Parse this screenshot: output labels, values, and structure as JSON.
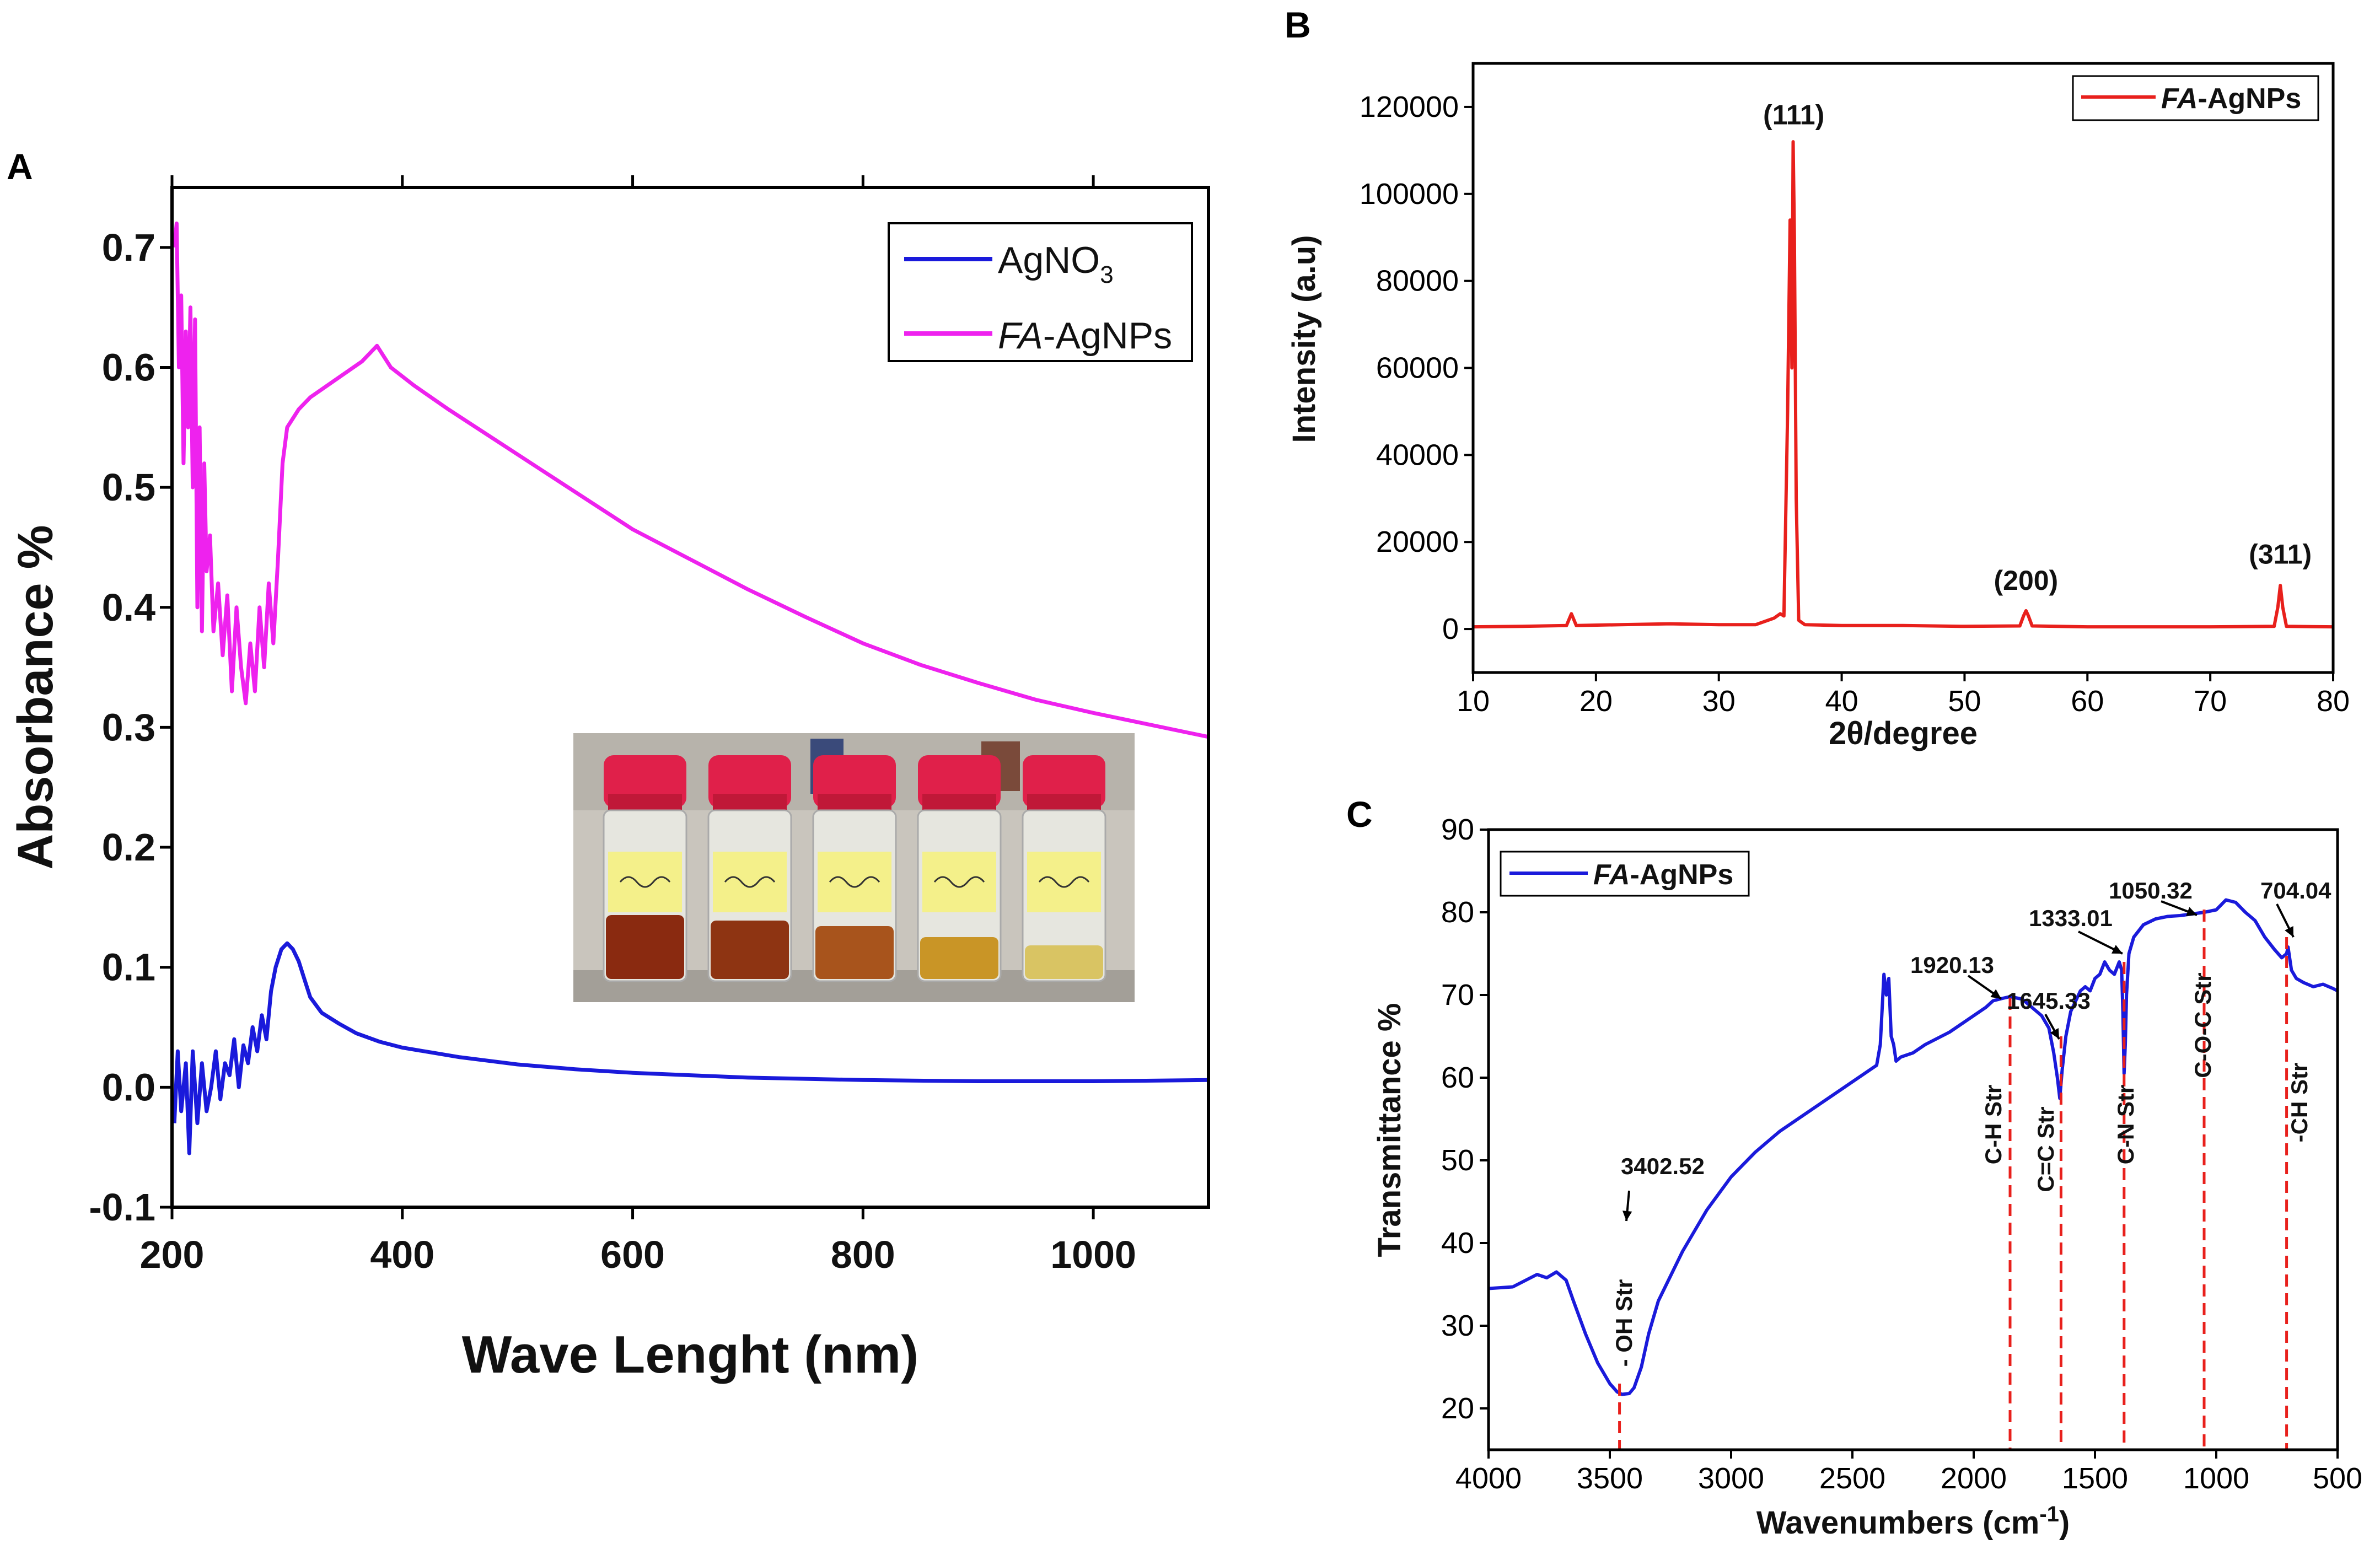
{
  "panels": {
    "A": {
      "label": "A"
    },
    "B": {
      "label": "B"
    },
    "C": {
      "label": "C"
    }
  },
  "chart_data": [
    {
      "id": "A",
      "type": "line",
      "xlabel": "Wave Lenght (nm)",
      "ylabel": "Absorbance %",
      "xlim": [
        200,
        1100
      ],
      "ylim": [
        -0.1,
        0.75
      ],
      "xticks": [
        200,
        400,
        600,
        800,
        1000
      ],
      "xtick_labels": [
        "200",
        "400",
        "600",
        "800",
        "1000"
      ],
      "yticks": [
        -0.1,
        0.0,
        0.1,
        0.2,
        0.3,
        0.4,
        0.5,
        0.6,
        0.7
      ],
      "ytick_labels": [
        "-0.1",
        "0.0",
        "0.1",
        "0.2",
        "0.3",
        "0.4",
        "0.5",
        "0.6",
        "0.7"
      ],
      "legend": {
        "position": "top-right",
        "entries": [
          {
            "name": "AgNO",
            "sub": "3",
            "color": "#1a1adb"
          },
          {
            "name_italic": "FA",
            "name_rest": "-AgNPs",
            "color": "#ee22ee"
          }
        ]
      },
      "series": [
        {
          "name": "AgNO3",
          "color": "#1a1adb",
          "x": [
            202,
            205,
            208,
            212,
            215,
            218,
            222,
            226,
            230,
            234,
            238,
            242,
            246,
            250,
            254,
            258,
            262,
            266,
            270,
            274,
            278,
            282,
            286,
            290,
            295,
            300,
            305,
            310,
            315,
            320,
            330,
            345,
            360,
            380,
            400,
            450,
            500,
            550,
            600,
            650,
            700,
            800,
            900,
            1000,
            1100
          ],
          "y": [
            -0.03,
            0.03,
            -0.02,
            0.02,
            -0.055,
            0.03,
            -0.03,
            0.02,
            -0.02,
            0.0,
            0.03,
            -0.01,
            0.02,
            0.01,
            0.04,
            0.0,
            0.035,
            0.02,
            0.05,
            0.03,
            0.06,
            0.04,
            0.08,
            0.1,
            0.115,
            0.12,
            0.115,
            0.105,
            0.09,
            0.075,
            0.062,
            0.053,
            0.045,
            0.038,
            0.033,
            0.025,
            0.019,
            0.015,
            0.012,
            0.01,
            0.008,
            0.006,
            0.005,
            0.005,
            0.006
          ]
        },
        {
          "name": "FA-AgNPs",
          "color": "#ee22ee",
          "x": [
            202,
            204,
            206,
            208,
            210,
            212,
            214,
            216,
            218,
            220,
            222,
            224,
            226,
            228,
            230,
            233,
            236,
            240,
            244,
            248,
            252,
            256,
            260,
            264,
            268,
            272,
            276,
            280,
            284,
            288,
            292,
            296,
            300,
            310,
            320,
            335,
            350,
            365,
            378,
            390,
            410,
            440,
            480,
            520,
            560,
            600,
            650,
            700,
            750,
            800,
            850,
            900,
            950,
            1000,
            1050,
            1100
          ],
          "y": [
            0.7,
            0.72,
            0.6,
            0.66,
            0.52,
            0.63,
            0.55,
            0.65,
            0.5,
            0.64,
            0.4,
            0.55,
            0.38,
            0.52,
            0.43,
            0.46,
            0.38,
            0.42,
            0.36,
            0.41,
            0.33,
            0.4,
            0.35,
            0.32,
            0.37,
            0.33,
            0.4,
            0.35,
            0.42,
            0.37,
            0.44,
            0.52,
            0.55,
            0.565,
            0.575,
            0.585,
            0.595,
            0.605,
            0.618,
            0.6,
            0.585,
            0.565,
            0.54,
            0.515,
            0.49,
            0.465,
            0.44,
            0.415,
            0.392,
            0.37,
            0.352,
            0.337,
            0.323,
            0.312,
            0.302,
            0.292
          ]
        }
      ]
    },
    {
      "id": "B",
      "type": "line",
      "xlabel": "2θ/degree",
      "ylabel": "Intensity (a.u)",
      "xlim": [
        10,
        80
      ],
      "ylim": [
        -10000,
        130000
      ],
      "xticks": [
        10,
        20,
        30,
        40,
        50,
        60,
        70,
        80
      ],
      "xtick_labels": [
        "10",
        "20",
        "30",
        "40",
        "50",
        "60",
        "70",
        "80"
      ],
      "yticks": [
        0,
        20000,
        40000,
        60000,
        80000,
        100000,
        120000
      ],
      "ytick_labels": [
        "0",
        "20000",
        "40000",
        "60000",
        "80000",
        "100000",
        "120000"
      ],
      "legend": {
        "position": "top-right",
        "entries": [
          {
            "name_italic": "FA",
            "name_rest": "-AgNPs",
            "color": "#e8201c"
          }
        ]
      },
      "annotations": [
        {
          "text": "(111)",
          "x": 36.1,
          "y": 116000
        },
        {
          "text": "(200)",
          "x": 55.0,
          "y": 9000
        },
        {
          "text": "(311)",
          "x": 75.7,
          "y": 15000
        }
      ],
      "series": [
        {
          "name": "FA-AgNPs",
          "color": "#e8201c",
          "x": [
            10,
            14,
            17.6,
            18.0,
            18.4,
            22,
            26,
            30,
            33,
            34.5,
            35.0,
            35.3,
            35.6,
            35.8,
            35.95,
            36.05,
            36.15,
            36.3,
            36.5,
            37,
            40,
            45,
            50,
            54.5,
            54.8,
            55.0,
            55.2,
            55.5,
            60,
            65,
            70,
            75.2,
            75.5,
            75.7,
            75.9,
            76.2,
            80
          ],
          "y": [
            500,
            600,
            800,
            3500,
            800,
            1000,
            1200,
            1000,
            1000,
            2500,
            3500,
            3000,
            50000,
            94000,
            60000,
            112000,
            90000,
            30000,
            2000,
            1000,
            800,
            800,
            600,
            700,
            3000,
            4200,
            3000,
            700,
            500,
            500,
            500,
            600,
            5000,
            10000,
            5000,
            600,
            500
          ]
        }
      ]
    },
    {
      "id": "C",
      "type": "line",
      "xlabel": "Wavenumbers (cm-1)",
      "xlabel_main": "Wavenumbers (cm",
      "xlabel_sup": "-1",
      "xlabel_end": ")",
      "ylabel": "Transmittance %",
      "xlim": [
        4000,
        500
      ],
      "ylim": [
        15,
        90
      ],
      "xticks": [
        4000,
        3500,
        3000,
        2500,
        2000,
        1500,
        1000,
        500
      ],
      "xtick_labels": [
        "4000",
        "3500",
        "3000",
        "2500",
        "2000",
        "1500",
        "1000",
        "500"
      ],
      "yticks": [
        20,
        30,
        40,
        50,
        60,
        70,
        80,
        90
      ],
      "ytick_labels": [
        "20",
        "30",
        "40",
        "50",
        "60",
        "70",
        "80",
        "90"
      ],
      "legend": {
        "position": "top-left",
        "entries": [
          {
            "name_italic": "FA",
            "name_rest": "-AgNPs",
            "color": "#1a1adb"
          }
        ]
      },
      "peaks": [
        {
          "value": "3402.52",
          "assignment": "- OH Str",
          "x": 3460
        },
        {
          "value": "1920.13",
          "assignment": "C-H Str",
          "x": 1850
        },
        {
          "value": "1645.33",
          "assignment": "C=C Str",
          "x": 1640
        },
        {
          "value": "1333.01",
          "assignment": "C-N Str",
          "x": 1380
        },
        {
          "value": "1050.32",
          "assignment": "C-O-C Str",
          "x": 1050
        },
        {
          "value": "704.04",
          "assignment": "-CH Str",
          "x": 710
        }
      ],
      "series": [
        {
          "name": "FA-AgNPs",
          "color": "#1a1adb",
          "x": [
            4000,
            3900,
            3800,
            3760,
            3720,
            3680,
            3650,
            3600,
            3550,
            3500,
            3470,
            3450,
            3420,
            3400,
            3370,
            3340,
            3300,
            3250,
            3200,
            3100,
            3000,
            2900,
            2800,
            2700,
            2600,
            2500,
            2400,
            2385,
            2370,
            2360,
            2350,
            2340,
            2330,
            2320,
            2300,
            2250,
            2200,
            2100,
            2000,
            1950,
            1920,
            1880,
            1850,
            1800,
            1760,
            1720,
            1690,
            1670,
            1655,
            1645,
            1635,
            1620,
            1600,
            1560,
            1540,
            1520,
            1500,
            1480,
            1460,
            1440,
            1420,
            1400,
            1390,
            1385,
            1380,
            1375,
            1370,
            1360,
            1340,
            1300,
            1250,
            1200,
            1150,
            1100,
            1050,
            1000,
            960,
            920,
            880,
            840,
            800,
            760,
            730,
            710,
            704,
            690,
            670,
            640,
            600,
            560,
            520,
            500
          ],
          "y": [
            34.5,
            34.7,
            36.2,
            35.8,
            36.5,
            35.5,
            33,
            29,
            25.5,
            23,
            22,
            21.7,
            21.8,
            22.5,
            25,
            29,
            33,
            36,
            39,
            44,
            48,
            51,
            53.5,
            55.5,
            57.5,
            59.5,
            61.5,
            64,
            72.5,
            70,
            72,
            65,
            64,
            62,
            62.5,
            63,
            64,
            65.5,
            67.5,
            68.5,
            69.3,
            69.6,
            69.8,
            69.5,
            68.5,
            67.5,
            66,
            63,
            60,
            57.5,
            61,
            65,
            68,
            70.5,
            71,
            70.5,
            72,
            72.5,
            74,
            73,
            72.5,
            74,
            73,
            68,
            60.5,
            64,
            70,
            75,
            77,
            78.5,
            79.2,
            79.5,
            79.6,
            79.8,
            80,
            80.3,
            81.5,
            81.2,
            80,
            79,
            77,
            75.5,
            74.5,
            75,
            75.8,
            73,
            72,
            71.5,
            71,
            71.3,
            70.8,
            70.5
          ]
        }
      ]
    }
  ]
}
